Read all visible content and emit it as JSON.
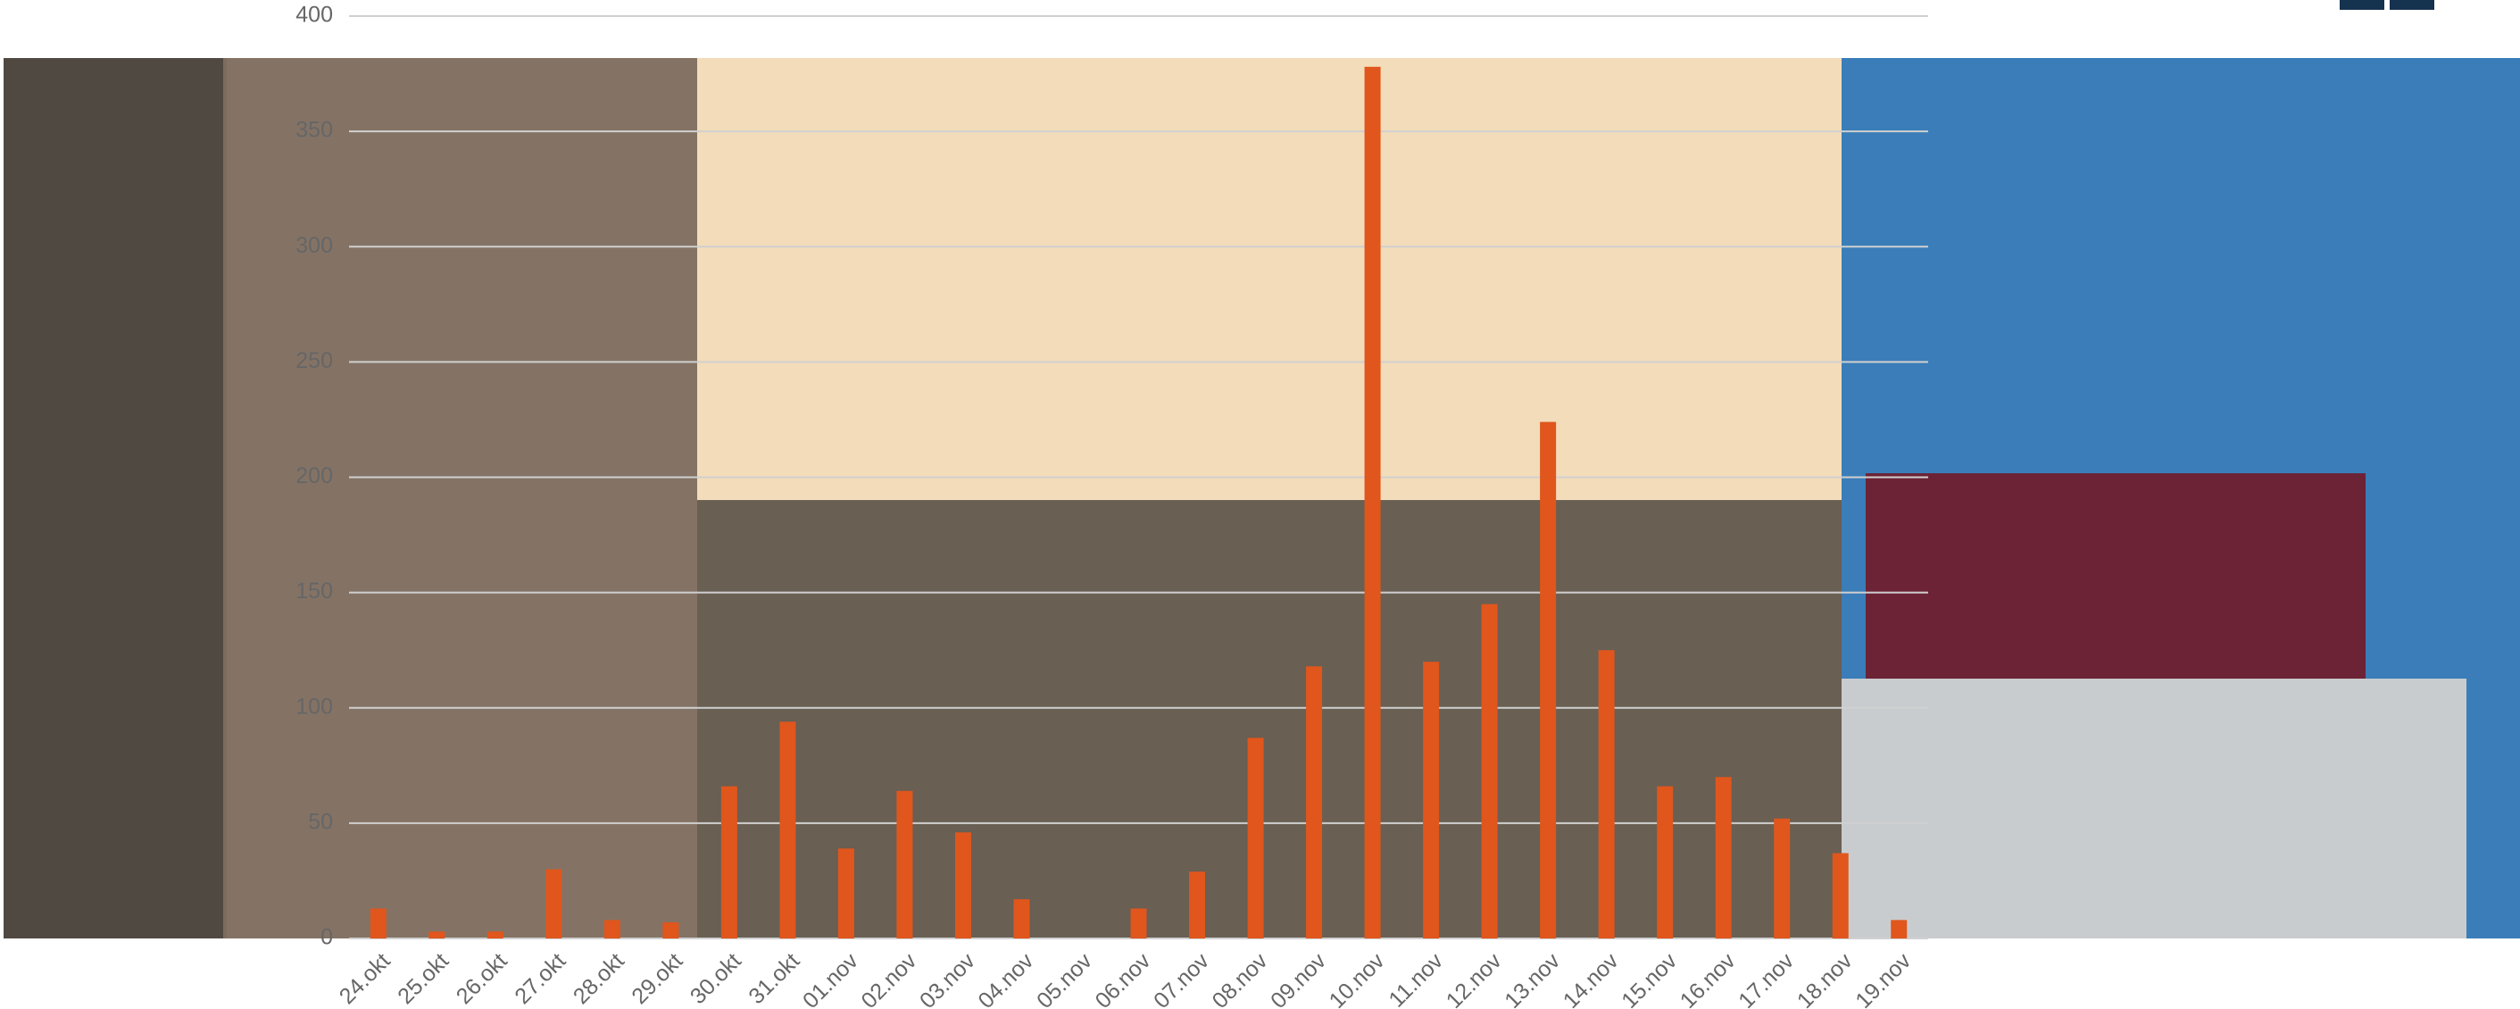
{
  "chart_data": {
    "type": "bar",
    "categories": [
      "24.okt",
      "25.okt",
      "26.okt",
      "27.okt",
      "28.okt",
      "29.okt",
      "30.okt",
      "31.okt",
      "01.nov",
      "02.nov",
      "03.nov",
      "04.nov",
      "05.nov",
      "06.nov",
      "07.nov",
      "08.nov",
      "09.nov",
      "10.nov",
      "11.nov",
      "12.nov",
      "13.nov",
      "14.nov",
      "15.nov",
      "16.nov",
      "17.nov",
      "18.nov",
      "19.nov"
    ],
    "values": [
      13,
      3,
      3,
      30,
      8,
      7,
      66,
      94,
      39,
      64,
      46,
      17,
      0,
      13,
      29,
      87,
      118,
      378,
      120,
      145,
      224,
      125,
      66,
      70,
      52,
      37,
      8
    ],
    "color": "#e0561c",
    "ylim": [
      0,
      400
    ],
    "yticks": [
      0,
      50,
      100,
      150,
      200,
      250,
      300,
      350,
      400
    ],
    "grid": true
  }
}
